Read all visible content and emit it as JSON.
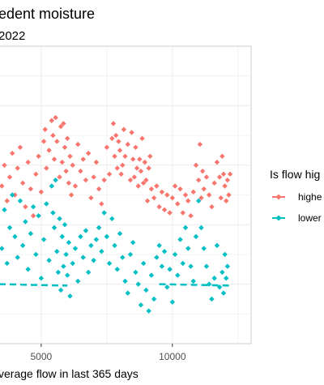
{
  "chart_data": {
    "type": "scatter",
    "title": "edent moisture",
    "subtitle": "2022",
    "xlabel": "verage flow in last 365 days",
    "ylabel": "",
    "x_ticks": [
      5000,
      10000
    ],
    "x_tick_labels": [
      "5000",
      "10000"
    ],
    "xlim": [
      3400,
      13000
    ],
    "ylim": [
      0,
      10
    ],
    "grid": true,
    "legend": {
      "title": "Is flow hig",
      "placement": "right",
      "entries": [
        {
          "label": "highe",
          "color": "#F8766D"
        },
        {
          "label": "lower",
          "color": "#00BFC4"
        }
      ]
    },
    "series": [
      {
        "name": "highe",
        "color": "#F8766D",
        "points": [
          [
            3500,
            5.3
          ],
          [
            3600,
            6.0
          ],
          [
            3700,
            4.8
          ],
          [
            3800,
            5.6
          ],
          [
            3900,
            6.4
          ],
          [
            4000,
            5.0
          ],
          [
            4100,
            5.9
          ],
          [
            4200,
            6.6
          ],
          [
            4300,
            5.4
          ],
          [
            4400,
            4.6
          ],
          [
            4500,
            6.1
          ],
          [
            4600,
            5.2
          ],
          [
            4700,
            4.3
          ],
          [
            4800,
            5.7
          ],
          [
            4900,
            6.3
          ],
          [
            5000,
            5.1
          ],
          [
            5100,
            6.8
          ],
          [
            5150,
            7.2
          ],
          [
            5200,
            5.9
          ],
          [
            5300,
            6.5
          ],
          [
            5400,
            7.5
          ],
          [
            5450,
            7.0
          ],
          [
            5500,
            6.2
          ],
          [
            5550,
            7.6
          ],
          [
            5600,
            6.8
          ],
          [
            5700,
            5.6
          ],
          [
            5750,
            7.3
          ],
          [
            5800,
            6.1
          ],
          [
            5850,
            7.4
          ],
          [
            5900,
            6.6
          ],
          [
            5950,
            5.8
          ],
          [
            6000,
            6.9
          ],
          [
            6050,
            5.4
          ],
          [
            6100,
            6.3
          ],
          [
            6150,
            5.0
          ],
          [
            6200,
            6.0
          ],
          [
            6300,
            5.3
          ],
          [
            6400,
            6.7
          ],
          [
            6500,
            5.8
          ],
          [
            6600,
            6.2
          ],
          [
            6700,
            5.5
          ],
          [
            6800,
            6.4
          ],
          [
            6900,
            4.9
          ],
          [
            7000,
            5.6
          ],
          [
            7100,
            6.1
          ],
          [
            7200,
            5.2
          ],
          [
            7300,
            4.7
          ],
          [
            7400,
            5.5
          ],
          [
            7500,
            6.6
          ],
          [
            7600,
            5.7
          ],
          [
            7700,
            6.9
          ],
          [
            7750,
            7.4
          ],
          [
            7800,
            6.3
          ],
          [
            7850,
            7.0
          ],
          [
            7900,
            5.9
          ],
          [
            7950,
            6.8
          ],
          [
            8000,
            6.5
          ],
          [
            8050,
            5.7
          ],
          [
            8100,
            6.0
          ],
          [
            8150,
            7.2
          ],
          [
            8200,
            6.3
          ],
          [
            8300,
            6.7
          ],
          [
            8400,
            5.5
          ],
          [
            8450,
            7.1
          ],
          [
            8500,
            6.2
          ],
          [
            8550,
            5.6
          ],
          [
            8600,
            6.6
          ],
          [
            8650,
            5.9
          ],
          [
            8700,
            5.3
          ],
          [
            8750,
            6.2
          ],
          [
            8800,
            5.8
          ],
          [
            8850,
            6.9
          ],
          [
            8900,
            5.4
          ],
          [
            8950,
            6.1
          ],
          [
            9000,
            5.5
          ],
          [
            9050,
            4.8
          ],
          [
            9100,
            5.9
          ],
          [
            9150,
            6.3
          ],
          [
            9200,
            5.2
          ],
          [
            9300,
            4.9
          ],
          [
            9400,
            5.3
          ],
          [
            9500,
            4.6
          ],
          [
            9600,
            5.1
          ],
          [
            9700,
            4.5
          ],
          [
            9800,
            5.0
          ],
          [
            9900,
            4.4
          ],
          [
            10000,
            4.9
          ],
          [
            10100,
            5.3
          ],
          [
            10200,
            4.7
          ],
          [
            10300,
            5.2
          ],
          [
            10400,
            4.4
          ],
          [
            10500,
            5.0
          ],
          [
            10600,
            4.8
          ],
          [
            10700,
            4.3
          ],
          [
            10800,
            5.1
          ],
          [
            10900,
            6.0
          ],
          [
            11000,
            5.5
          ],
          [
            11050,
            6.7
          ],
          [
            11100,
            4.9
          ],
          [
            11150,
            5.8
          ],
          [
            11200,
            5.2
          ],
          [
            11300,
            5.6
          ],
          [
            11400,
            5.0
          ],
          [
            11500,
            4.6
          ],
          [
            11600,
            5.4
          ],
          [
            11700,
            6.1
          ],
          [
            11800,
            5.6
          ],
          [
            11850,
            4.9
          ],
          [
            11900,
            6.3
          ],
          [
            11950,
            5.7
          ],
          [
            12000,
            5.3
          ],
          [
            12050,
            4.8
          ],
          [
            12100,
            5.5
          ],
          [
            12150,
            5.0
          ],
          [
            12200,
            5.7
          ]
        ]
      },
      {
        "name": "lower",
        "color": "#00BFC4",
        "points": [
          [
            3500,
            3.2
          ],
          [
            3600,
            4.5
          ],
          [
            3700,
            2.7
          ],
          [
            3800,
            3.9
          ],
          [
            3900,
            5.0
          ],
          [
            4000,
            3.6
          ],
          [
            4100,
            2.9
          ],
          [
            4200,
            4.8
          ],
          [
            4300,
            3.3
          ],
          [
            4400,
            4.1
          ],
          [
            4500,
            2.5
          ],
          [
            4600,
            3.7
          ],
          [
            4700,
            4.6
          ],
          [
            4800,
            3.0
          ],
          [
            4900,
            4.3
          ],
          [
            5000,
            2.2
          ],
          [
            5100,
            3.5
          ],
          [
            5200,
            4.7
          ],
          [
            5300,
            2.8
          ],
          [
            5400,
            5.3
          ],
          [
            5450,
            4.4
          ],
          [
            5500,
            3.9
          ],
          [
            5550,
            5.5
          ],
          [
            5600,
            3.1
          ],
          [
            5650,
            2.4
          ],
          [
            5700,
            4.2
          ],
          [
            5750,
            1.8
          ],
          [
            5800,
            3.6
          ],
          [
            5850,
            2.6
          ],
          [
            5900,
            4.0
          ],
          [
            5950,
            3.0
          ],
          [
            6000,
            2.3
          ],
          [
            6050,
            3.4
          ],
          [
            6100,
            1.6
          ],
          [
            6200,
            2.7
          ],
          [
            6300,
            3.2
          ],
          [
            6400,
            2.1
          ],
          [
            6500,
            3.6
          ],
          [
            6600,
            2.9
          ],
          [
            6700,
            3.8
          ],
          [
            6800,
            2.4
          ],
          [
            6900,
            3.3
          ],
          [
            7000,
            2.8
          ],
          [
            7100,
            3.5
          ],
          [
            7200,
            3.9
          ],
          [
            7300,
            3.1
          ],
          [
            7400,
            4.4
          ],
          [
            7500,
            3.6
          ],
          [
            7600,
            2.7
          ],
          [
            7700,
            4.2
          ],
          [
            7800,
            3.3
          ],
          [
            7900,
            2.5
          ],
          [
            8000,
            3.7
          ],
          [
            8100,
            2.9
          ],
          [
            8200,
            2.1
          ],
          [
            8300,
            1.7
          ],
          [
            8400,
            3.0
          ],
          [
            8500,
            3.4
          ],
          [
            8600,
            2.4
          ],
          [
            8700,
            2.0
          ],
          [
            8800,
            1.3
          ],
          [
            8900,
            2.7
          ],
          [
            9000,
            1.8
          ],
          [
            9100,
            1.1
          ],
          [
            9200,
            2.3
          ],
          [
            9300,
            1.5
          ],
          [
            9400,
            2.9
          ],
          [
            9500,
            3.3
          ],
          [
            9600,
            2.6
          ],
          [
            9700,
            3.1
          ],
          [
            9800,
            1.9
          ],
          [
            9900,
            2.5
          ],
          [
            10000,
            1.4
          ],
          [
            10100,
            3.0
          ],
          [
            10200,
            2.3
          ],
          [
            10300,
            3.5
          ],
          [
            10400,
            2.7
          ],
          [
            10500,
            3.9
          ],
          [
            10600,
            3.2
          ],
          [
            10700,
            2.6
          ],
          [
            10800,
            2.1
          ],
          [
            10900,
            3.6
          ],
          [
            11000,
            4.8
          ],
          [
            11100,
            3.9
          ],
          [
            11200,
            3.2
          ],
          [
            11300,
            2.6
          ],
          [
            11400,
            2.0
          ],
          [
            11500,
            1.5
          ],
          [
            11600,
            2.2
          ],
          [
            11700,
            3.3
          ],
          [
            11800,
            1.9
          ],
          [
            11900,
            2.4
          ],
          [
            11950,
            1.7
          ],
          [
            12000,
            3.0
          ],
          [
            12050,
            2.2
          ],
          [
            12100,
            2.6
          ]
        ]
      }
    ]
  }
}
